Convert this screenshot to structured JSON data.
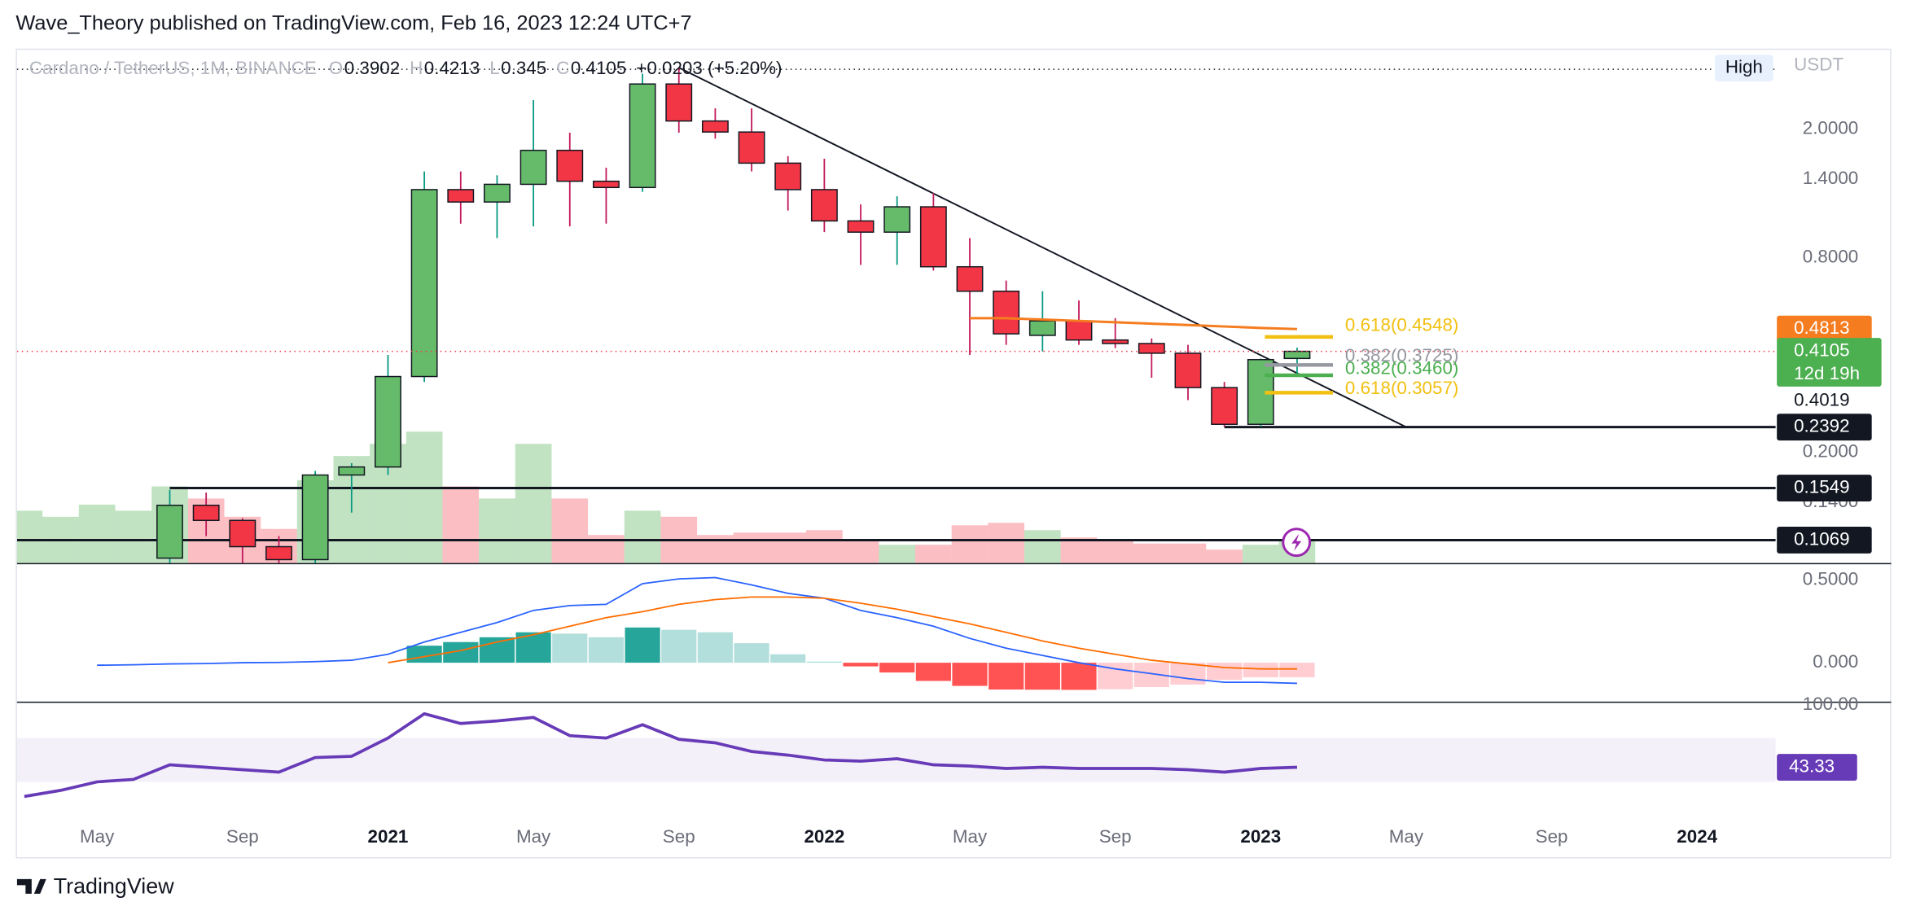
{
  "header": "Wave_Theory published on TradingView.com, Feb 16, 2023 12:24 UTC+7",
  "footer": "TradingView",
  "chart_data": {
    "type": "candlestick",
    "legend": {
      "symbol": "Cardano / TetherUS, 1M, BINANCE",
      "prefixes": [
        "O",
        "H",
        "L",
        "C"
      ],
      "change": "+0.0203 (+5.20%)"
    },
    "currency": "USDT",
    "scale_button": "High",
    "log_scale": true,
    "grid": false,
    "categories": [
      null,
      null,
      "May",
      null,
      null,
      null,
      "Sep",
      null,
      null,
      null,
      "2021",
      null,
      null,
      null,
      "May",
      null,
      null,
      null,
      "Sep",
      null,
      null,
      null,
      "2022",
      null,
      null,
      null,
      "May",
      null,
      null,
      null,
      "Sep",
      null,
      null,
      null,
      "2023",
      null,
      null,
      null,
      "May",
      null,
      null,
      null,
      "Sep",
      null,
      null,
      null,
      "2024",
      null
    ],
    "open": [
      null,
      null,
      null,
      null,
      0.094,
      0.137,
      0.123,
      0.102,
      0.093,
      0.17,
      0.18,
      0.343,
      1.3,
      1.19,
      1.35,
      1.72,
      1.38,
      1.32,
      2.76,
      2.12,
      1.96,
      1.57,
      1.3,
      1.04,
      0.96,
      1.15,
      0.75,
      0.63,
      0.46,
      0.51,
      0.445,
      0.434,
      0.405,
      0.317,
      0.244,
      0.3902,
      null,
      null,
      null,
      null,
      null,
      null,
      null,
      null,
      null,
      null,
      null,
      null
    ],
    "high": [
      null,
      null,
      null,
      null,
      0.153,
      0.15,
      0.125,
      0.11,
      0.175,
      0.185,
      0.4,
      1.48,
      1.48,
      1.44,
      2.46,
      1.95,
      1.52,
      2.97,
      3.1,
      2.32,
      2.32,
      1.65,
      1.62,
      1.17,
      1.24,
      1.27,
      0.92,
      0.68,
      0.63,
      0.59,
      0.52,
      0.45,
      0.43,
      0.33,
      0.39,
      0.4213,
      null,
      null,
      null,
      null,
      null,
      null,
      null,
      null,
      null,
      null,
      null,
      null
    ],
    "low": [
      null,
      null,
      null,
      null,
      0.09,
      0.11,
      0.08,
      0.09,
      0.09,
      0.13,
      0.17,
      0.33,
      1.02,
      0.92,
      1.0,
      1.0,
      1.02,
      1.28,
      1.95,
      1.87,
      1.48,
      1.12,
      0.96,
      0.76,
      0.76,
      0.73,
      0.4,
      0.43,
      0.41,
      0.43,
      0.42,
      0.34,
      0.29,
      0.24,
      0.24,
      0.345,
      null,
      null,
      null,
      null,
      null,
      null,
      null,
      null,
      null,
      null,
      null,
      null
    ],
    "close": [
      null,
      null,
      null,
      null,
      0.137,
      0.123,
      0.102,
      0.093,
      0.17,
      0.18,
      0.343,
      1.3,
      1.19,
      1.35,
      1.72,
      1.38,
      1.32,
      2.76,
      2.12,
      1.96,
      1.57,
      1.3,
      1.04,
      0.96,
      1.15,
      0.75,
      0.63,
      0.465,
      0.51,
      0.445,
      0.434,
      0.405,
      0.317,
      0.244,
      0.387,
      0.4105,
      null,
      null,
      null,
      null,
      null,
      null,
      null,
      null,
      null,
      null,
      null,
      null
    ],
    "up_color": "#66bb6a",
    "down_color": "#f23645",
    "ma": [
      null,
      null,
      null,
      null,
      null,
      null,
      null,
      null,
      null,
      null,
      null,
      null,
      null,
      null,
      null,
      null,
      null,
      null,
      null,
      null,
      null,
      null,
      null,
      null,
      null,
      null,
      0.52,
      0.52,
      0.515,
      0.51,
      0.505,
      0.5,
      0.495,
      0.49,
      0.485,
      0.4813,
      null,
      null,
      null,
      null,
      null,
      null,
      null,
      null,
      null,
      null,
      null,
      null
    ],
    "ma_color": "#f57c1f",
    "countdown": "12d 19h",
    "price_marker": 0.4019,
    "levels": [
      0.2392,
      0.1549,
      0.1069
    ],
    "fib_levels": [
      {
        "label": "0.618(0.4548)",
        "value": 0.4548,
        "color": "#f2c012"
      },
      {
        "label": "0.382(0.3725)",
        "value": 0.3725,
        "color": "#9598a1"
      },
      {
        "label": "0.382(0.3460)",
        "value": 0.346,
        "color": "#4caf50"
      },
      {
        "label": "0.618(0.3057)",
        "value": 0.3057,
        "color": "#f2c012"
      }
    ],
    "ylim": [
      0.0908,
      3.46
    ],
    "yticks": [
      {
        "value": 2,
        "label": "2.0000"
      },
      {
        "value": 1.4,
        "label": "1.4000"
      },
      {
        "value": 0.8,
        "label": "0.8000"
      },
      {
        "value": 0.2,
        "label": "0.2000"
      },
      {
        "value": 0.14,
        "label": "0.1400"
      }
    ],
    "volume": [
      43,
      38,
      48,
      43,
      63,
      53,
      38,
      28,
      68,
      88,
      98,
      108,
      63,
      53,
      98,
      53,
      23,
      43,
      38,
      23,
      25,
      25,
      27,
      18,
      15,
      15,
      31,
      33,
      27,
      21,
      18,
      16,
      16,
      11,
      15,
      18,
      null,
      null,
      null,
      null,
      null,
      null,
      null,
      null,
      null,
      null,
      null,
      null
    ],
    "volume_ylim": [
      0,
      420
    ],
    "volume_colors": {
      "up": "rgba(76,175,80,0.35)",
      "down": "rgba(242,54,69,0.32)"
    },
    "macd": {
      "macd": [
        null,
        null,
        -0.015,
        -0.0125,
        -0.007,
        -0.005,
        0,
        0.002,
        0.007,
        0.015,
        0.051,
        0.125,
        0.184,
        0.243,
        0.316,
        0.346,
        0.353,
        0.478,
        0.507,
        0.515,
        0.471,
        0.419,
        0.39,
        0.316,
        0.272,
        0.221,
        0.147,
        0.088,
        0.044,
        0,
        -0.037,
        -0.066,
        -0.096,
        -0.118,
        -0.118,
        -0.125,
        null,
        null,
        null,
        null,
        null,
        null,
        null,
        null,
        null,
        null,
        null,
        null
      ],
      "signal": [
        null,
        null,
        null,
        null,
        null,
        null,
        null,
        null,
        null,
        null,
        0,
        0.037,
        0.074,
        0.125,
        0.169,
        0.221,
        0.272,
        0.309,
        0.353,
        0.382,
        0.397,
        0.397,
        0.39,
        0.36,
        0.324,
        0.279,
        0.235,
        0.184,
        0.132,
        0.088,
        0.051,
        0.015,
        -0.007,
        -0.029,
        -0.037,
        -0.037,
        null,
        null,
        null,
        null,
        null,
        null,
        null,
        null,
        null,
        null,
        null,
        null
      ],
      "histogram": [
        null,
        null,
        null,
        null,
        null,
        null,
        null,
        null,
        null,
        null,
        null,
        0.103,
        0.125,
        0.154,
        0.184,
        0.176,
        0.154,
        0.213,
        0.199,
        0.184,
        0.118,
        0.051,
        0.007,
        -0.022,
        -0.059,
        -0.11,
        -0.14,
        -0.162,
        -0.163,
        -0.164,
        -0.16,
        -0.147,
        -0.132,
        -0.103,
        -0.088,
        -0.088,
        null,
        null,
        null,
        null,
        null,
        null,
        null,
        null,
        null,
        null,
        null,
        null
      ],
      "macd_color": "#2962ff",
      "signal_color": "#ff6d00",
      "hist_colors": {
        "rise_up": "#26a69a",
        "fall_up": "#b2dfdb",
        "fall_down": "#ff5252",
        "rise_down": "#ffcdd2"
      },
      "ylim": [
        -0.235,
        0.603
      ],
      "yticks": [
        {
          "value": 0.5,
          "label": "0.5000"
        },
        {
          "value": 0,
          "label": "0.000"
        }
      ]
    },
    "rsi": {
      "values": [
        16.7,
        22.2,
        30,
        32.2,
        45.6,
        43.3,
        41.1,
        38.9,
        52.2,
        53.3,
        70,
        92.2,
        83.3,
        85.6,
        88.9,
        72.2,
        70,
        82.2,
        68.9,
        65.6,
        57.8,
        54.4,
        50,
        48.9,
        51.1,
        45.6,
        44.4,
        42.2,
        43.3,
        42.2,
        42.2,
        42.2,
        41.1,
        38.9,
        42.2,
        43.33,
        null,
        null,
        null,
        null,
        null,
        null,
        null,
        null,
        null,
        null,
        null,
        null
      ],
      "color": "#673ab7",
      "band": [
        30,
        70
      ],
      "band_color": "rgba(126,87,194,0.09)",
      "ylim": [
        -11.1,
        103.3
      ],
      "yticks": [
        {
          "value": 100,
          "label": "100.00"
        }
      ]
    }
  }
}
